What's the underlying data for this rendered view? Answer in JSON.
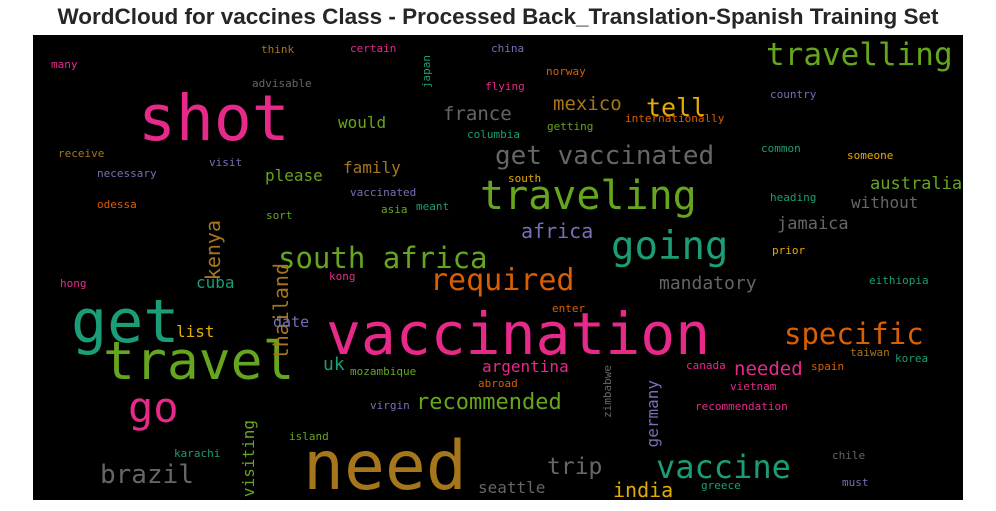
{
  "title": "WordCloud for vaccines Class - Processed Back_Translation-Spanish Training Set",
  "palette": {
    "green": "#66a61e",
    "teal": "#1b9e77",
    "pink": "#e7298a",
    "gold": "#a6761d",
    "orange": "#d95f02",
    "yellow": "#e6ab02",
    "purple": "#7570b3",
    "gray": "#666666"
  },
  "words": [
    {
      "text": "vaccination",
      "color": "#e7298a"
    },
    {
      "text": "need",
      "color": "#a6761d"
    },
    {
      "text": "shot",
      "color": "#e7298a"
    },
    {
      "text": "get",
      "color": "#1b9e77"
    },
    {
      "text": "travel",
      "color": "#66a61e"
    },
    {
      "text": "traveling",
      "color": "#66a61e"
    },
    {
      "text": "going",
      "color": "#1b9e77"
    },
    {
      "text": "travelling",
      "color": "#66a61e"
    },
    {
      "text": "go",
      "color": "#e7298a"
    },
    {
      "text": "vaccine",
      "color": "#1b9e77"
    },
    {
      "text": "south africa",
      "color": "#66a61e"
    },
    {
      "text": "get vaccinated",
      "color": "#666666"
    },
    {
      "text": "required",
      "color": "#d95f02"
    },
    {
      "text": "specific",
      "color": "#d95f02"
    },
    {
      "text": "brazil",
      "color": "#666666"
    },
    {
      "text": "trip",
      "color": "#666666"
    },
    {
      "text": "recommended",
      "color": "#66a61e"
    },
    {
      "text": "tell",
      "color": "#e6ab02"
    },
    {
      "text": "mexico",
      "color": "#a6761d"
    },
    {
      "text": "france",
      "color": "#666666"
    },
    {
      "text": "africa",
      "color": "#7570b3"
    },
    {
      "text": "india",
      "color": "#e6ab02"
    },
    {
      "text": "kenya",
      "color": "#a6761d"
    },
    {
      "text": "thailand",
      "color": "#a6761d"
    },
    {
      "text": "needed",
      "color": "#e7298a"
    },
    {
      "text": "mandatory",
      "color": "#666666"
    },
    {
      "text": "australia",
      "color": "#66a61e"
    },
    {
      "text": "jamaica",
      "color": "#666666"
    },
    {
      "text": "without",
      "color": "#666666"
    },
    {
      "text": "would",
      "color": "#66a61e"
    },
    {
      "text": "family",
      "color": "#a6761d"
    },
    {
      "text": "please",
      "color": "#66a61e"
    },
    {
      "text": "cuba",
      "color": "#1b9e77"
    },
    {
      "text": "list",
      "color": "#e6ab02"
    },
    {
      "text": "date",
      "color": "#7570b3"
    },
    {
      "text": "uk",
      "color": "#1b9e77"
    },
    {
      "text": "argentina",
      "color": "#e7298a"
    },
    {
      "text": "germany",
      "color": "#7570b3"
    },
    {
      "text": "visiting",
      "color": "#66a61e"
    },
    {
      "text": "seattle",
      "color": "#666666"
    },
    {
      "text": "think",
      "color": "#a6761d"
    },
    {
      "text": "certain",
      "color": "#e7298a"
    },
    {
      "text": "china",
      "color": "#7570b3"
    },
    {
      "text": "many",
      "color": "#e7298a"
    },
    {
      "text": "advisable",
      "color": "#666666"
    },
    {
      "text": "japan",
      "color": "#1b9e77"
    },
    {
      "text": "flying",
      "color": "#e7298a"
    },
    {
      "text": "norway",
      "color": "#d95f02"
    },
    {
      "text": "country",
      "color": "#7570b3"
    },
    {
      "text": "columbia",
      "color": "#1b9e77"
    },
    {
      "text": "getting",
      "color": "#66a61e"
    },
    {
      "text": "internationally",
      "color": "#d95f02"
    },
    {
      "text": "receive",
      "color": "#a6761d"
    },
    {
      "text": "visit",
      "color": "#7570b3"
    },
    {
      "text": "common",
      "color": "#1b9e77"
    },
    {
      "text": "someone",
      "color": "#e6ab02"
    },
    {
      "text": "necessary",
      "color": "#7570b3"
    },
    {
      "text": "south",
      "color": "#e6ab02"
    },
    {
      "text": "vaccinated",
      "color": "#7570b3"
    },
    {
      "text": "odessa",
      "color": "#d95f02"
    },
    {
      "text": "asia",
      "color": "#66a61e"
    },
    {
      "text": "meant",
      "color": "#1b9e77"
    },
    {
      "text": "heading",
      "color": "#1b9e77"
    },
    {
      "text": "sort",
      "color": "#66a61e"
    },
    {
      "text": "prior",
      "color": "#e6ab02"
    },
    {
      "text": "hong",
      "color": "#e7298a"
    },
    {
      "text": "kong",
      "color": "#e7298a"
    },
    {
      "text": "eithiopia",
      "color": "#1b9e77"
    },
    {
      "text": "enter",
      "color": "#d95f02"
    },
    {
      "text": "canada",
      "color": "#e7298a"
    },
    {
      "text": "taiwan",
      "color": "#a6761d"
    },
    {
      "text": "korea",
      "color": "#1b9e77"
    },
    {
      "text": "mozambique",
      "color": "#66a61e"
    },
    {
      "text": "spain",
      "color": "#d95f02"
    },
    {
      "text": "abroad",
      "color": "#d95f02"
    },
    {
      "text": "vietnam",
      "color": "#e7298a"
    },
    {
      "text": "zimbabwe",
      "color": "#666666"
    },
    {
      "text": "virgin",
      "color": "#7570b3"
    },
    {
      "text": "recommendation",
      "color": "#e7298a"
    },
    {
      "text": "island",
      "color": "#66a61e"
    },
    {
      "text": "karachi",
      "color": "#1b9e77"
    },
    {
      "text": "chile",
      "color": "#666666"
    },
    {
      "text": "must",
      "color": "#7570b3"
    },
    {
      "text": "greece",
      "color": "#1b9e77"
    }
  ]
}
